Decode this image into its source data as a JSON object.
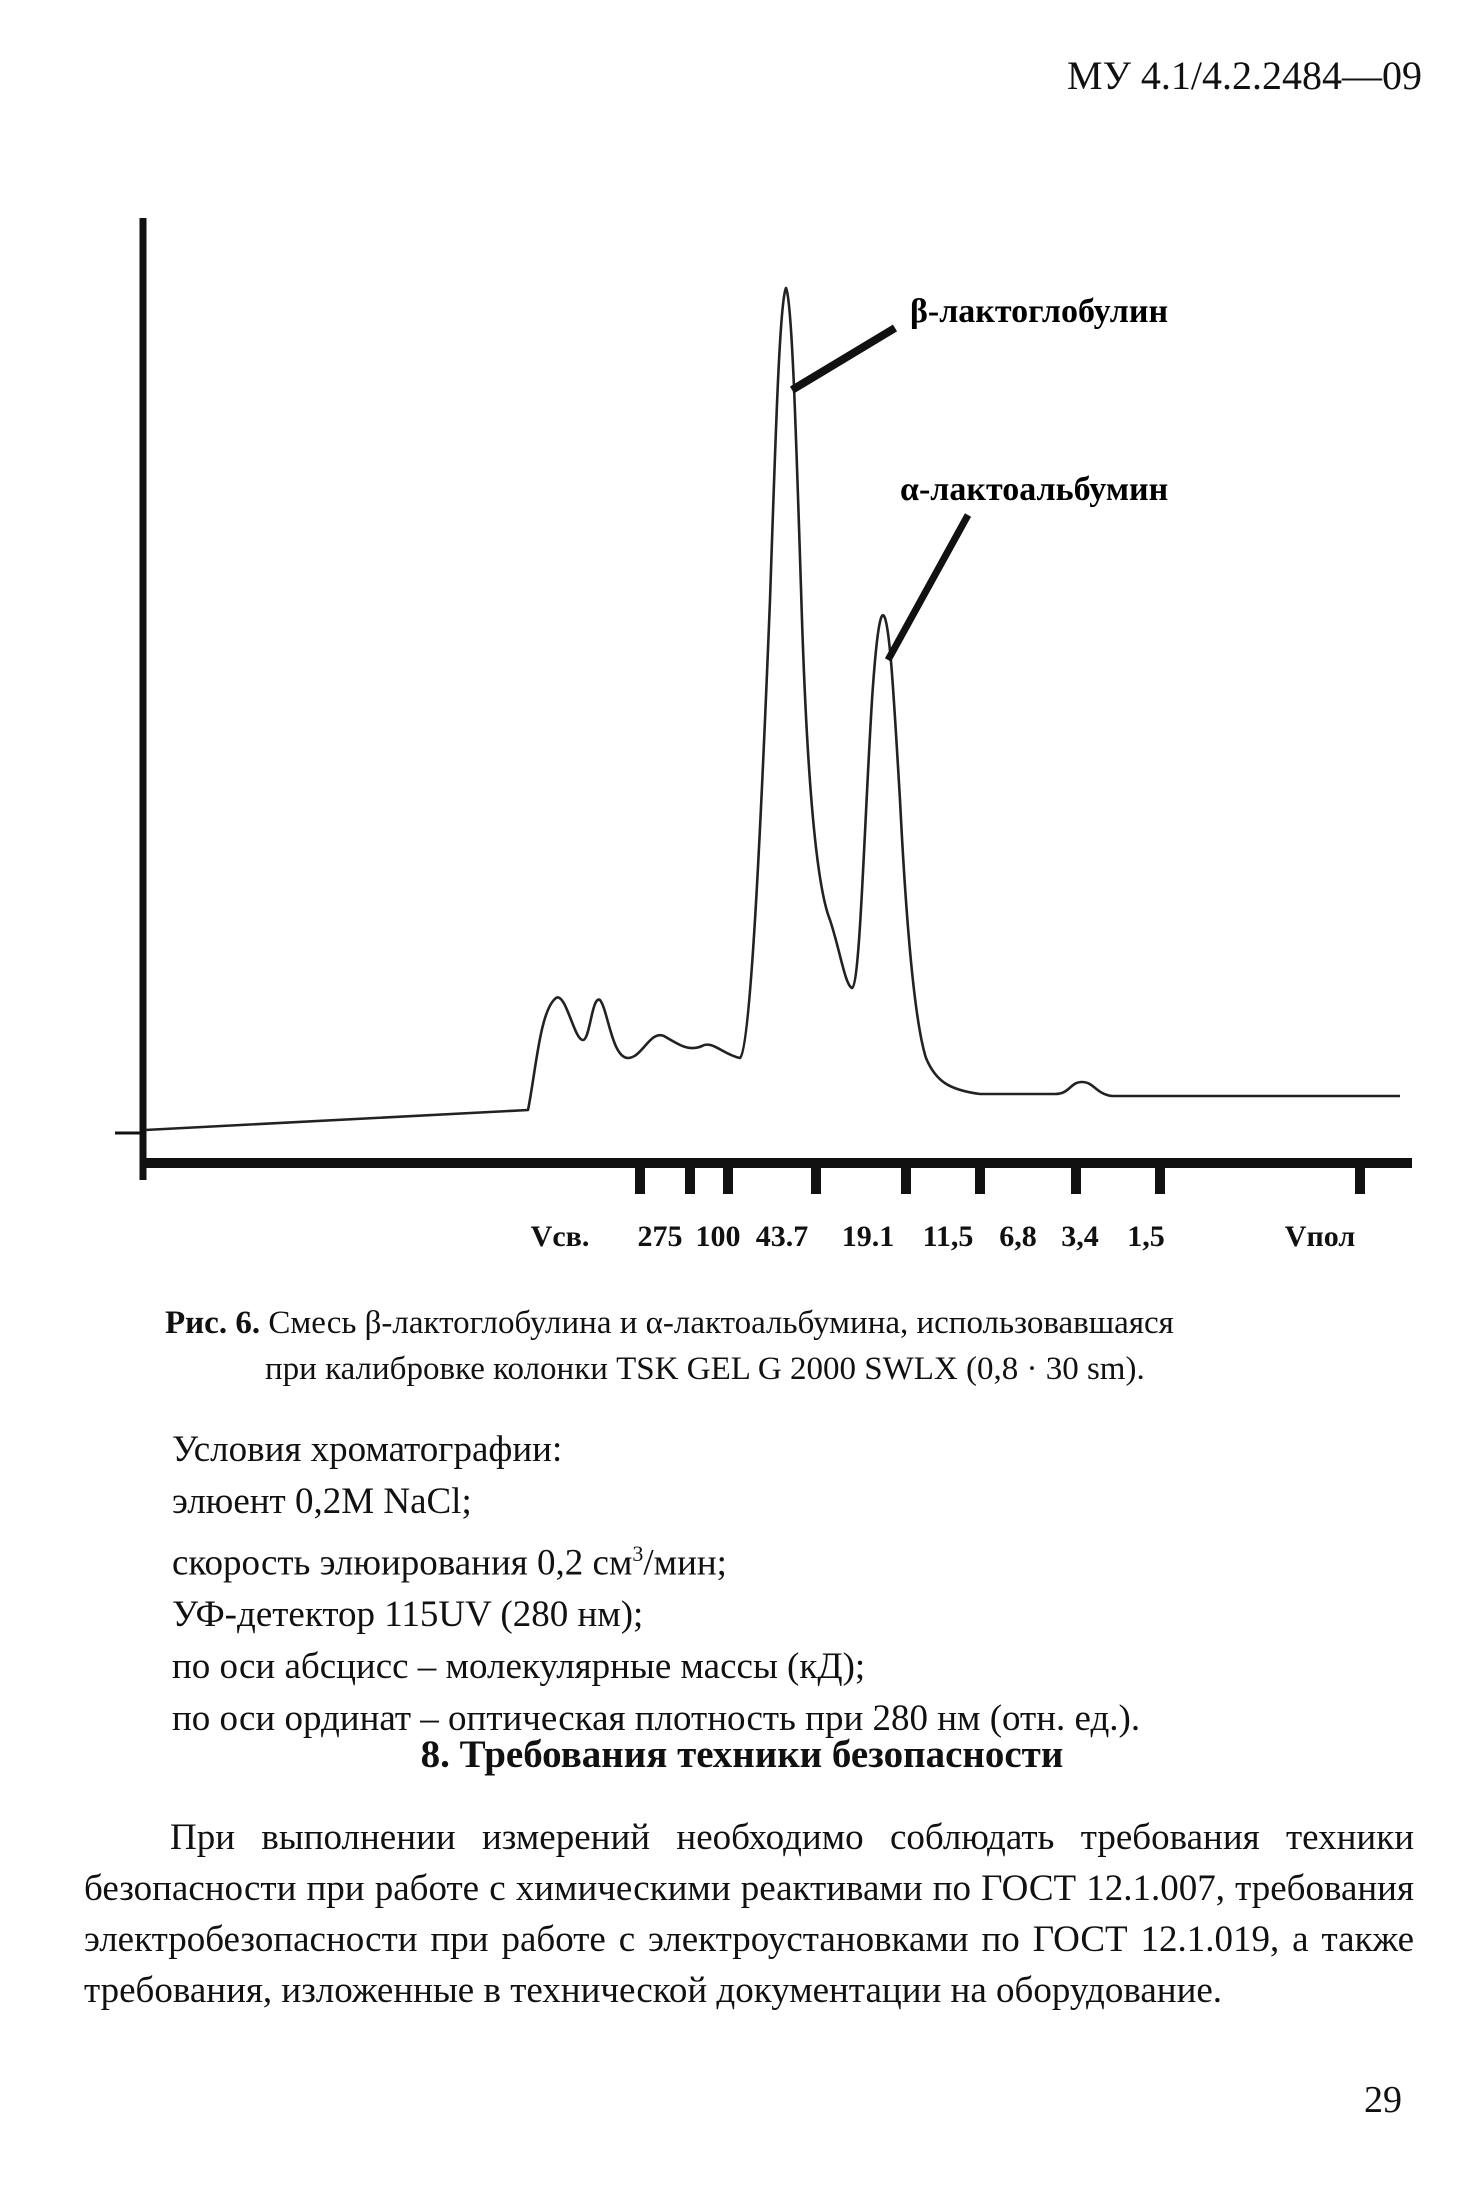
{
  "header": {
    "doc_code": "МУ 4.1/4.2.2484—09"
  },
  "chart_data": {
    "type": "line",
    "title": "",
    "xlabel": "",
    "ylabel": "",
    "tick_labels": [
      "Vсв.",
      "275",
      "100",
      "43.7",
      "19.1",
      "11,5",
      "6,8",
      "3,4",
      "1,5",
      "Vпол"
    ],
    "annotations": [
      {
        "text": "β-лактоглобулин",
        "peak": "major"
      },
      {
        "text": "α-лактоальбумин",
        "peak": "minor"
      }
    ],
    "grid": false,
    "legend": "none"
  },
  "caption": {
    "label": "Рис. 6.",
    "line1": " Смесь β-лактоглобулина и α-лактоальбумина, использовавшаяся",
    "line2": "при калибровке колонки TSK GEL G 2000 SWLX (0,8 · 30 sm)."
  },
  "conditions": {
    "title": "Условия хроматографии:",
    "eluent": "элюент 0,2M NaCl;",
    "rate_prefix": "скорость элюирования 0,2 см",
    "rate_sup": "3",
    "rate_suffix": "/мин;",
    "detector": "УФ-детектор 115UV (280 нм);",
    "abscissa": "по оси абсцисс – молекулярные массы (кД);",
    "ordinate": "по оси ординат – оптическая плотность при 280 нм (отн. ед.)."
  },
  "section": {
    "title": "8. Требования техники безопасности",
    "paragraph": "При выполнении измерений необходимо соблюдать требования техники безопасности при работе с химическими реактивами по ГОСТ 12.1.007, требования электробезопасности при работе с электроустановками по ГОСТ 12.1.019, а также требования, изложенные в технической документации на оборудование."
  },
  "footer": {
    "page_number": "29"
  }
}
